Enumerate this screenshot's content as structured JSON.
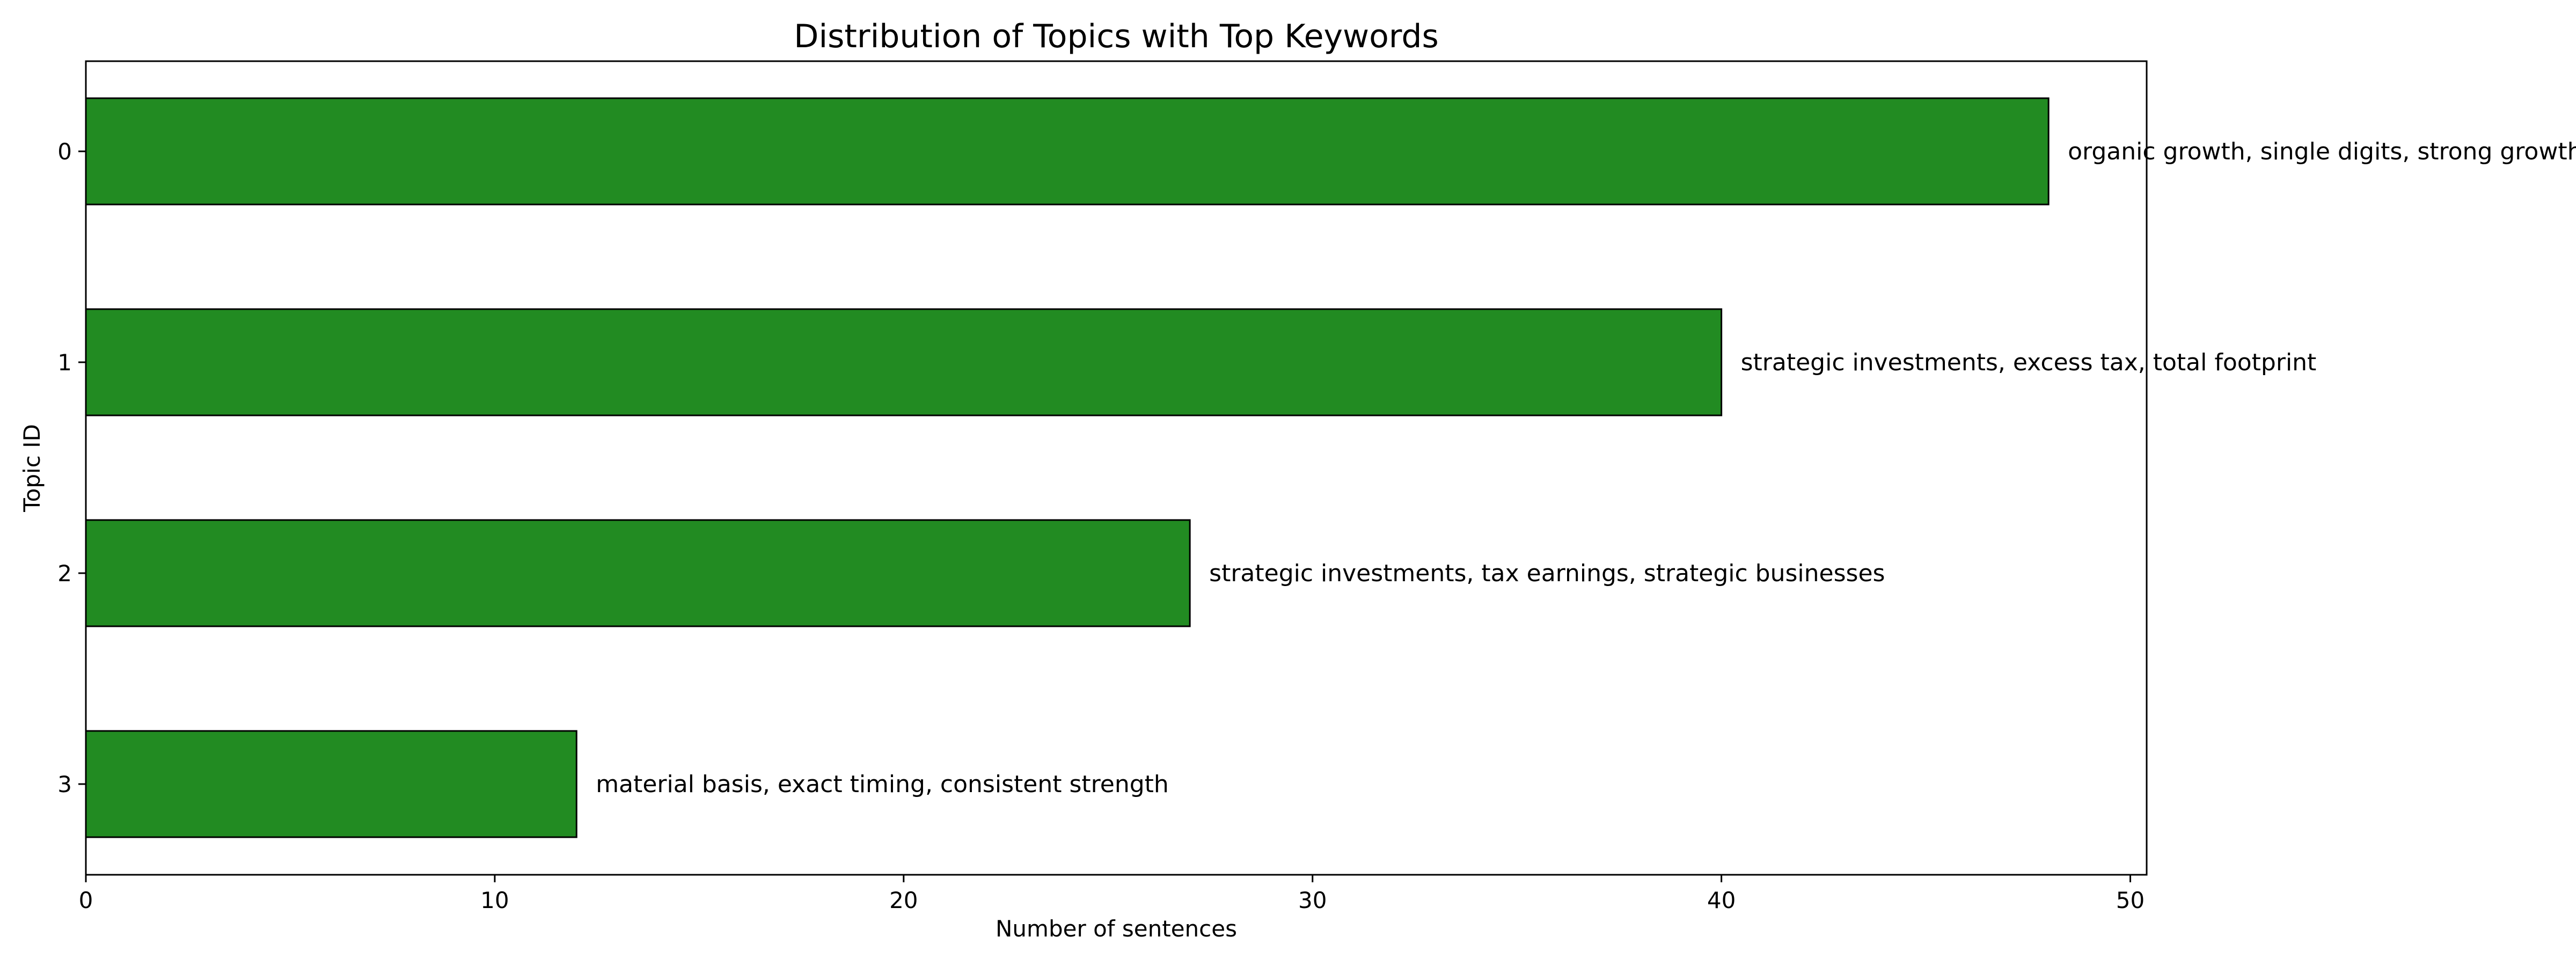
{
  "chart_data": {
    "type": "bar",
    "orientation": "horizontal",
    "title": "Distribution of Topics with Top Keywords",
    "xlabel": "Number of sentences",
    "ylabel": "Topic ID",
    "categories": [
      "0",
      "1",
      "2",
      "3"
    ],
    "values": [
      48,
      40,
      27,
      12
    ],
    "bar_labels": [
      "organic growth, single digits, strong growth",
      "strategic investments, excess tax, total footprint",
      "strategic investments, tax earnings, strategic businesses",
      "material basis, exact timing, consistent strength"
    ],
    "xlim": [
      0,
      50.4
    ],
    "xticks": [
      0,
      10,
      20,
      30,
      40,
      50
    ],
    "bar_color": "#228b22",
    "bar_edge_color": "#000000",
    "grid": false,
    "legend": false
  }
}
